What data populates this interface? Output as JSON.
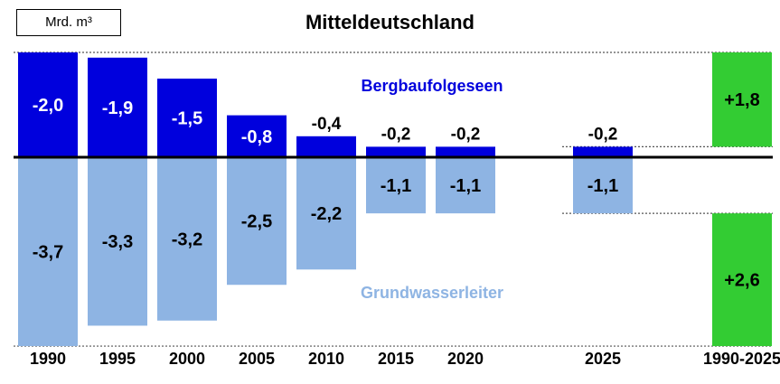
{
  "unit": "Mrd. m³",
  "title": "Mitteldeutschland",
  "chart_data": {
    "type": "bar",
    "title": "Mitteldeutschland",
    "unit": "Mrd. m³",
    "categories": [
      "1990",
      "1995",
      "2000",
      "2005",
      "2010",
      "2015",
      "2020",
      "2025",
      "1990-2025"
    ],
    "series": [
      {
        "name": "Bergbaufolgeseen",
        "color": "#0000dd",
        "values": [
          -2.0,
          -1.9,
          -1.5,
          -0.8,
          -0.4,
          -0.2,
          -0.2,
          -0.2,
          null
        ],
        "labels": [
          "-2,0",
          "-1,9",
          "-1,5",
          "-0,8",
          "-0,4",
          "-0,2",
          "-0,2",
          "-0,2",
          ""
        ]
      },
      {
        "name": "Grundwasserleiter",
        "color": "#8eb4e3",
        "values": [
          -3.7,
          -3.3,
          -3.2,
          -2.5,
          -2.2,
          -1.1,
          -1.1,
          -1.1,
          null
        ],
        "labels": [
          "-3,7",
          "-3,3",
          "-3,2",
          "-2,5",
          "-2,2",
          "-1,1",
          "-1,1",
          "-1,1",
          ""
        ]
      }
    ],
    "difference_1990_2025": {
      "color": "#33cc33",
      "Bergbaufolgeseen": 1.8,
      "Grundwasserleiter": 2.6,
      "labels": [
        "+1,8",
        "+2,6"
      ]
    }
  }
}
